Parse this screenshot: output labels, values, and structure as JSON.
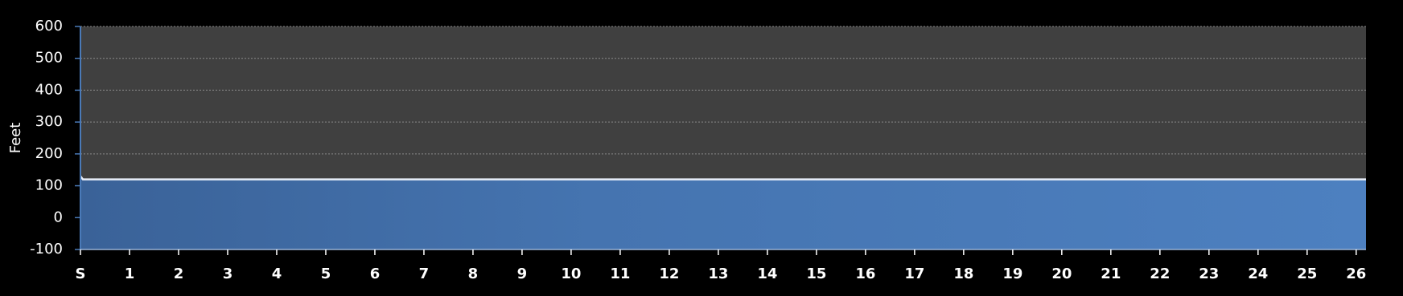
{
  "chart_data": {
    "type": "area",
    "y_label": "Feet",
    "x": [
      0,
      0.05,
      26.2
    ],
    "values": [
      130,
      120,
      120
    ],
    "color": "#4a7ab8",
    "line_color": "#e8eef8",
    "xlim": [
      0,
      26.2
    ],
    "ylim": [
      -100,
      600
    ],
    "yticks": [
      -100,
      0,
      100,
      200,
      300,
      400,
      500,
      600
    ],
    "xticks": [
      {
        "value": 0,
        "label": "S"
      },
      1,
      2,
      3,
      4,
      5,
      6,
      7,
      8,
      9,
      10,
      11,
      12,
      13,
      14,
      15,
      16,
      17,
      18,
      19,
      20,
      21,
      22,
      23,
      24,
      25,
      26
    ],
    "grid": true
  }
}
